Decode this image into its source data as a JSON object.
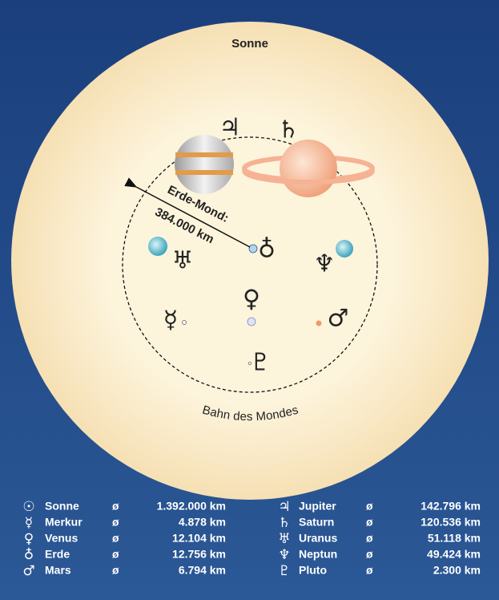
{
  "diagram": {
    "sun_label": "Sonne",
    "distance_label": "Erde-Mond:",
    "distance_value": "384.000 km",
    "orbit_label": "Bahn des Mondes"
  },
  "legend": {
    "diameter_sign": "ø",
    "columns": [
      [
        {
          "symbol": "☉",
          "name": "Sonne",
          "diameter": "1.392.000 km"
        },
        {
          "symbol": "☿",
          "name": "Merkur",
          "diameter": "4.878 km"
        },
        {
          "symbol": "♀",
          "name": "Venus",
          "diameter": "12.104 km"
        },
        {
          "symbol": "♁",
          "name": "Erde",
          "diameter": "12.756 km"
        },
        {
          "symbol": "♂",
          "name": "Mars",
          "diameter": "6.794 km"
        }
      ],
      [
        {
          "symbol": "♃",
          "name": "Jupiter",
          "diameter": "142.796 km"
        },
        {
          "symbol": "♄",
          "name": "Saturn",
          "diameter": "120.536 km"
        },
        {
          "symbol": "♅",
          "name": "Uranus",
          "diameter": "51.118 km"
        },
        {
          "symbol": "♆",
          "name": "Neptun",
          "diameter": "49.424 km"
        },
        {
          "symbol": "♇",
          "name": "Pluto",
          "diameter": "2.300 km"
        }
      ]
    ]
  }
}
